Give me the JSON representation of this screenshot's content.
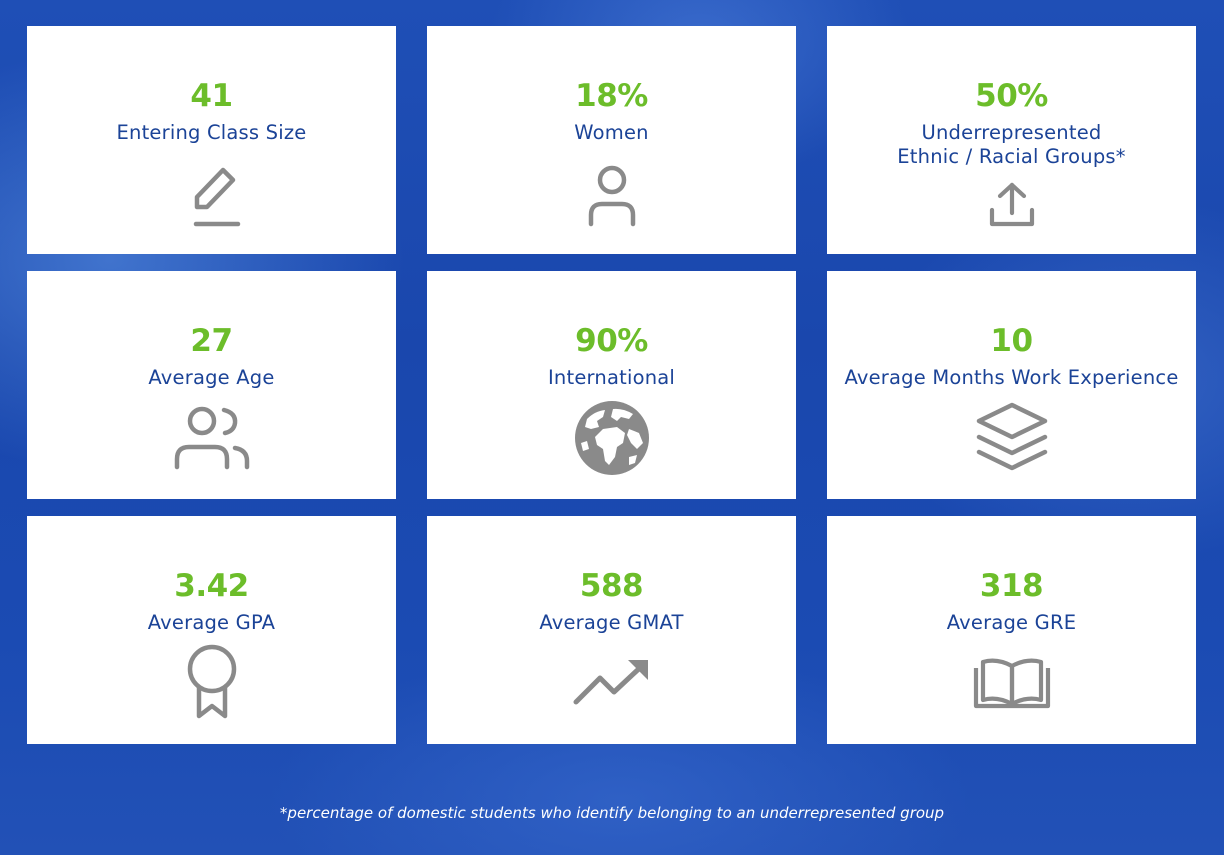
{
  "cards": [
    {
      "value": "41",
      "label": "Entering Class Size",
      "icon": "pencil-icon"
    },
    {
      "value": "18%",
      "label": "Women",
      "icon": "person-icon"
    },
    {
      "value": "50%",
      "label_line1": "Underrepresented",
      "label_line2": "Ethnic / Racial Groups*",
      "icon": "upload-icon"
    },
    {
      "value": "27",
      "label": "Average Age",
      "icon": "users-icon"
    },
    {
      "value": "90%",
      "label": "International",
      "icon": "globe-icon"
    },
    {
      "value": "10",
      "label": "Average Months Work Experience",
      "icon": "layers-icon"
    },
    {
      "value": "3.42",
      "label": "Average GPA",
      "icon": "award-icon"
    },
    {
      "value": "588",
      "label": "Average GMAT",
      "icon": "trending-up-icon"
    },
    {
      "value": "318",
      "label": "Average GRE",
      "icon": "book-icon"
    }
  ],
  "footnote": "*percentage of domestic students who identify belonging to an underrepresented group",
  "colors": {
    "value": "#6cbd2a",
    "label": "#1b4397",
    "icon": "#8a8a8a",
    "card": "#ffffff"
  }
}
